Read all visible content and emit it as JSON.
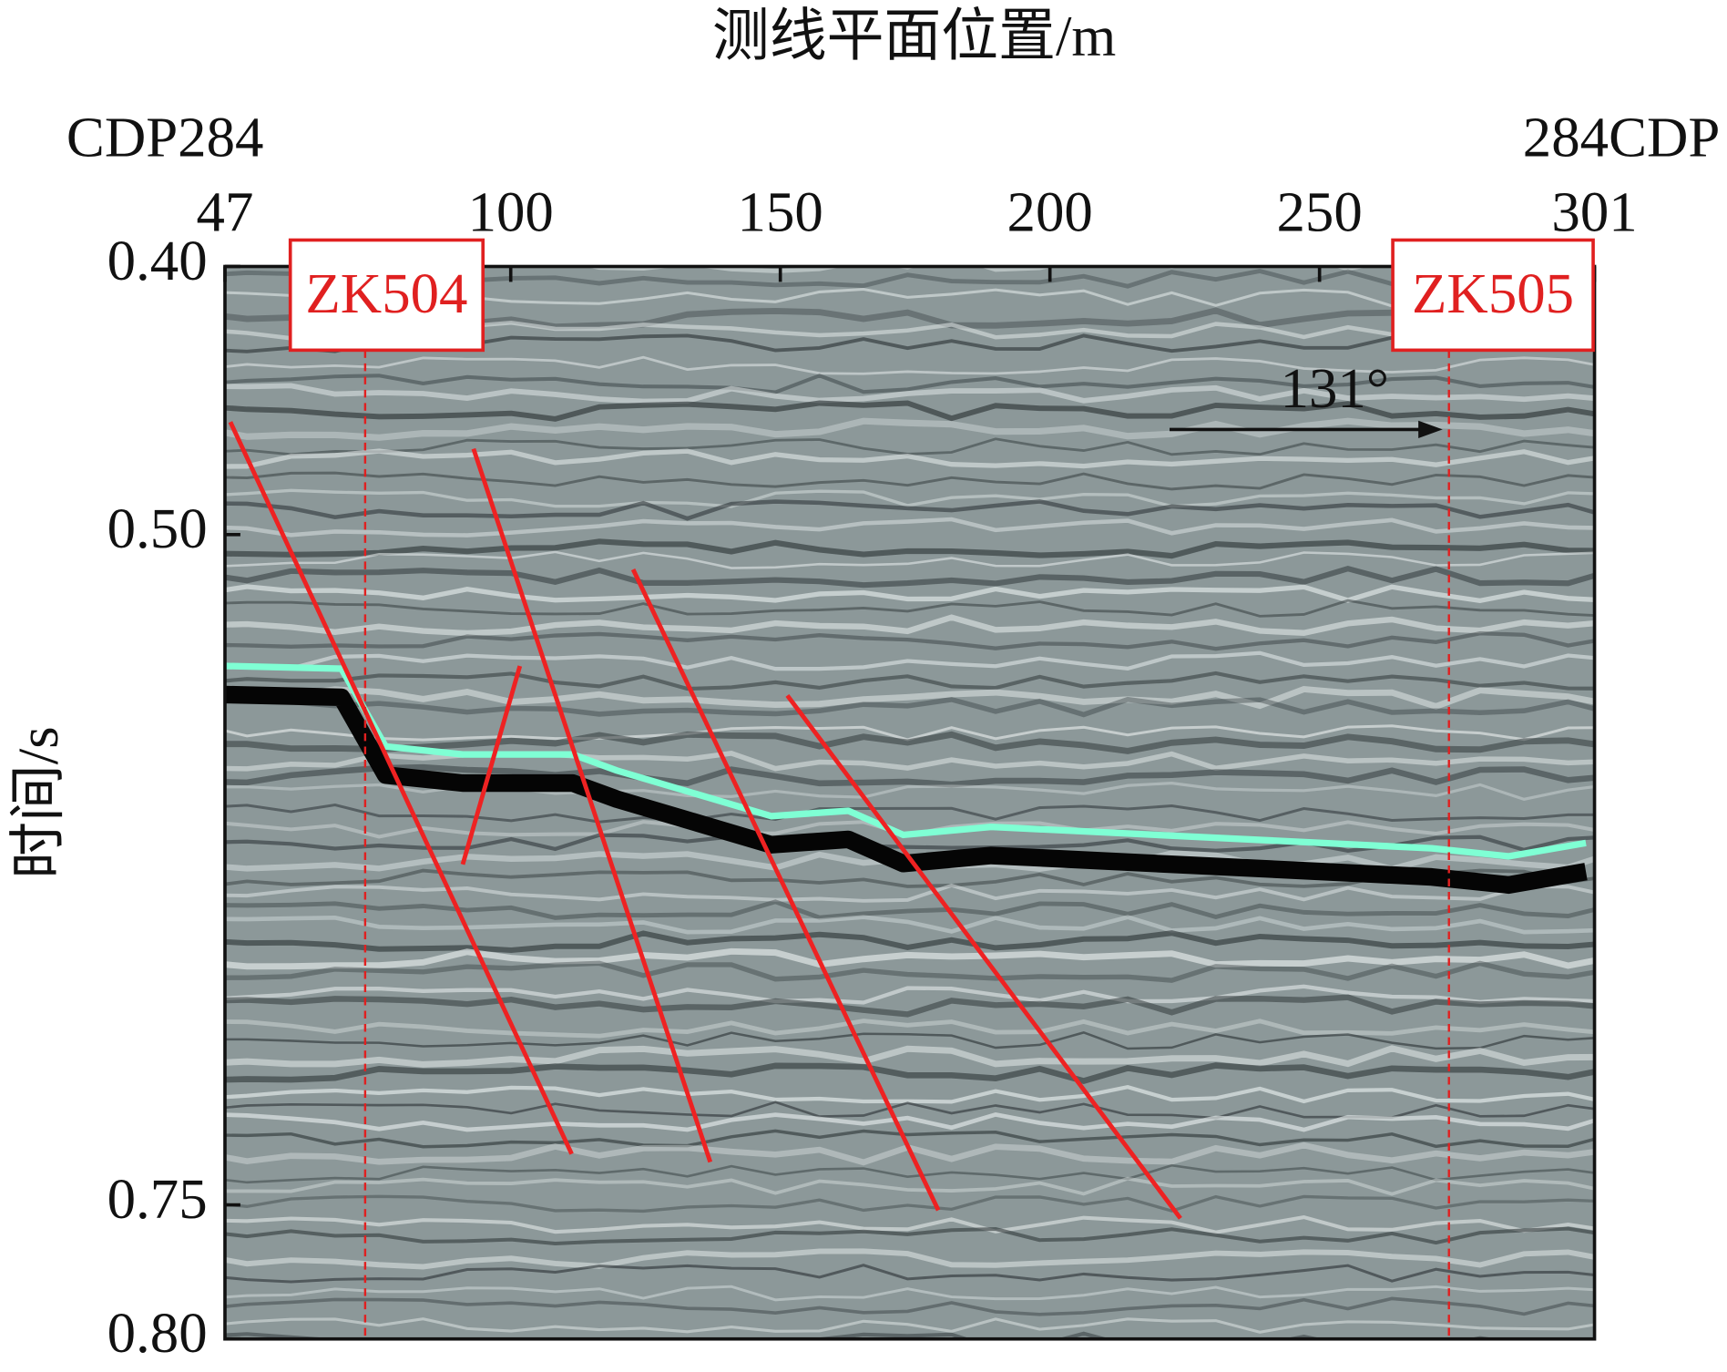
{
  "chart_data": {
    "type": "seismic-section",
    "title": "测线平面位置/m",
    "y_label": "时间/s",
    "left_label": "CDP284",
    "right_label": "284CDP",
    "xlim": [
      47,
      301
    ],
    "xticks": [
      47,
      100,
      150,
      200,
      250,
      301
    ],
    "ylim": [
      0.4,
      0.8
    ],
    "yticks": [
      {
        "value": 0.4,
        "label": "0.40"
      },
      {
        "value": 0.5,
        "label": "0.50"
      },
      {
        "value": 0.75,
        "label": "0.75"
      },
      {
        "value": 0.8,
        "label": "0.80"
      }
    ],
    "wells": [
      {
        "name": "ZK504",
        "x": 73
      },
      {
        "name": "ZK505",
        "x": 274
      }
    ],
    "azimuth_label": "131°",
    "horizon": {
      "color": "#7fffd4",
      "x": [
        47,
        68.6,
        76.8,
        91.1,
        111.5,
        119.7,
        148.3,
        162.6,
        172.8,
        189.1,
        270.8,
        285.1,
        299.4
      ],
      "y": [
        0.549,
        0.55,
        0.579,
        0.582,
        0.582,
        0.588,
        0.605,
        0.603,
        0.612,
        0.609,
        0.617,
        0.62,
        0.615
      ]
    },
    "faults": {
      "color": "#ee2222",
      "lines": [
        {
          "x": [
            48,
            111.3
          ],
          "y": [
            0.458,
            0.731
          ]
        },
        {
          "x": [
            93.1,
            137
          ],
          "y": [
            0.468,
            0.734
          ]
        },
        {
          "x": [
            122.7,
            179.3
          ],
          "y": [
            0.513,
            0.752
          ]
        },
        {
          "x": [
            151.3,
            224.2
          ],
          "y": [
            0.56,
            0.755
          ]
        },
        {
          "x": [
            101.7,
            91.1
          ],
          "y": [
            0.549,
            0.623
          ]
        }
      ]
    }
  }
}
